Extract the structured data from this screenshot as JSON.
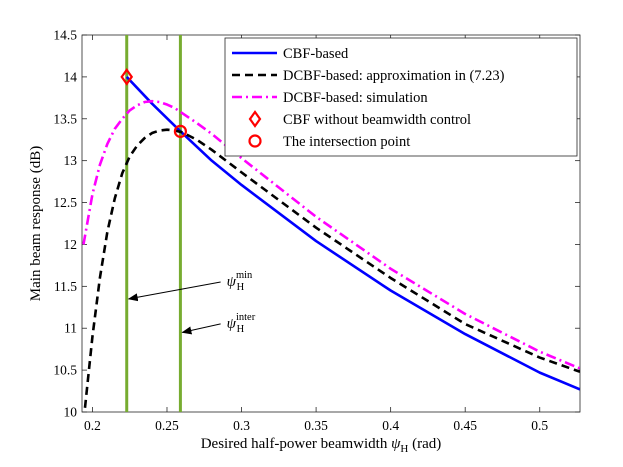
{
  "chart_data": {
    "type": "line",
    "xlabel": "Desired half-power beamwidth",
    "xlabel_symbol": "ψ",
    "xlabel_sub": "H",
    "xlabel_unit": "(rad)",
    "ylabel": "Main beam response (dB)",
    "xlim": [
      0.193,
      0.527
    ],
    "ylim": [
      10,
      14.5
    ],
    "xticks": [
      0.2,
      0.25,
      0.3,
      0.35,
      0.4,
      0.45,
      0.5
    ],
    "xtick_labels": [
      "0.2",
      "0.25",
      "0.3",
      "0.35",
      "0.4",
      "0.45",
      "0.5"
    ],
    "yticks": [
      10,
      10.5,
      11,
      11.5,
      12,
      12.5,
      13,
      13.5,
      14,
      14.5
    ],
    "ytick_labels": [
      "10",
      "10.5",
      "11",
      "11.5",
      "12",
      "12.5",
      "13",
      "13.5",
      "14",
      "14.5"
    ],
    "series": [
      {
        "name": "CBF-based",
        "color": "#0000ff",
        "style": "solid",
        "x": [
          0.223,
          0.24,
          0.259,
          0.28,
          0.3,
          0.35,
          0.4,
          0.45,
          0.5,
          0.527
        ],
        "y": [
          14.0,
          13.68,
          13.35,
          13.0,
          12.71,
          12.04,
          11.45,
          10.93,
          10.47,
          10.27
        ]
      },
      {
        "name": "DCBF-based: approximation in (7.23)",
        "color": "#000000",
        "style": "dashed",
        "x": [
          0.195,
          0.2,
          0.205,
          0.21,
          0.215,
          0.22,
          0.225,
          0.23,
          0.235,
          0.24,
          0.245,
          0.25,
          0.255,
          0.26,
          0.27,
          0.28,
          0.3,
          0.35,
          0.4,
          0.45,
          0.5,
          0.527
        ],
        "y": [
          10.05,
          10.9,
          11.6,
          12.15,
          12.55,
          12.85,
          13.05,
          13.18,
          13.27,
          13.33,
          13.36,
          13.37,
          13.36,
          13.34,
          13.25,
          13.13,
          12.86,
          12.2,
          11.6,
          11.05,
          10.65,
          10.48
        ]
      },
      {
        "name": "DCBF-based: simulation",
        "color": "#ff00ff",
        "style": "dashdot",
        "x": [
          0.194,
          0.2,
          0.205,
          0.21,
          0.215,
          0.22,
          0.225,
          0.23,
          0.235,
          0.24,
          0.245,
          0.25,
          0.255,
          0.26,
          0.27,
          0.28,
          0.3,
          0.35,
          0.4,
          0.45,
          0.5,
          0.527
        ],
        "y": [
          12.0,
          12.6,
          12.95,
          13.2,
          13.38,
          13.5,
          13.6,
          13.66,
          13.7,
          13.71,
          13.7,
          13.67,
          13.63,
          13.57,
          13.45,
          13.32,
          13.03,
          12.33,
          11.71,
          11.17,
          10.72,
          10.52
        ]
      }
    ],
    "markers": [
      {
        "name": "CBF without beamwidth control",
        "shape": "diamond",
        "color": "#ff0000",
        "x": 0.223,
        "y": 14.0
      },
      {
        "name": "The intersection point",
        "shape": "circle",
        "color": "#ff0000",
        "x": 0.259,
        "y": 13.35
      }
    ],
    "vlines": [
      {
        "x": 0.223,
        "color": "#77ac30"
      },
      {
        "x": 0.259,
        "color": "#77ac30"
      }
    ],
    "annotations": [
      {
        "symbol": "ψ",
        "sub": "H",
        "sup": "min",
        "arrow_to": [
          0.223,
          11.35
        ],
        "text_at": [
          0.29,
          11.6
        ]
      },
      {
        "symbol": "ψ",
        "sub": "H",
        "sup": "inter",
        "arrow_to": [
          0.259,
          10.95
        ],
        "text_at": [
          0.29,
          11.1
        ]
      }
    ],
    "legend_position": "top-right",
    "grid": false
  }
}
